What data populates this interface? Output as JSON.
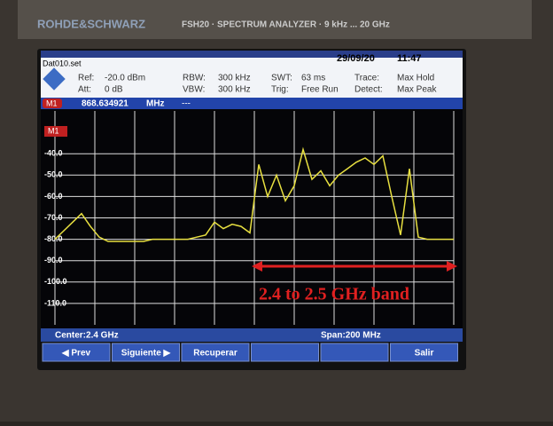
{
  "device": {
    "brand": "ROHDE&SCHWARZ",
    "model": "FSH20 · SPECTRUM ANALYZER · 9 kHz ... 20 GHz"
  },
  "screen": {
    "file": "Dat010.set",
    "date": "29/09/20",
    "time": "11:47",
    "settings": [
      {
        "label": "Ref:",
        "value": "-20.0 dBm"
      },
      {
        "label": "Att:",
        "value": "0 dB"
      },
      {
        "label": "RBW:",
        "value": "300 kHz"
      },
      {
        "label": "VBW:",
        "value": "300 kHz"
      },
      {
        "label": "SWT:",
        "value": "63 ms"
      },
      {
        "label": "Trig:",
        "value": "Free Run"
      },
      {
        "label": "Trace:",
        "value": "Max Hold"
      },
      {
        "label": "Detect:",
        "value": "Max Peak"
      }
    ],
    "marker": {
      "name": "M1",
      "frequency": "868.634921",
      "unit": "MHz",
      "level": "---"
    },
    "center": "Center:2.4 GHz",
    "span": "Span:200 MHz",
    "softkeys": [
      "◀ Prev",
      "Siguiente ▶",
      "Recuperar",
      "",
      "",
      "Salir"
    ]
  },
  "chart_data": {
    "type": "line",
    "annotation": "2.4 to 2.5 GHz band",
    "color": "#e8e040",
    "ylim": [
      -120,
      -20
    ],
    "yticks": [
      {
        "value": -40,
        "label": "-40.0"
      },
      {
        "value": -50,
        "label": "-50.0"
      },
      {
        "value": -60,
        "label": "-60.0"
      },
      {
        "value": -70,
        "label": "-70.0"
      },
      {
        "value": -80,
        "label": "-80.0"
      },
      {
        "value": -90,
        "label": "-90.0"
      },
      {
        "value": -100,
        "label": "-100.0"
      },
      {
        "value": -110,
        "label": "-110.0"
      }
    ],
    "grid": true,
    "values": [
      -80,
      -76,
      -72,
      -68,
      -74,
      -79,
      -81,
      -81,
      -81,
      -81,
      -81,
      -80,
      -80,
      -80,
      -80,
      -80,
      -79,
      -78,
      -72,
      -75,
      -73,
      -74,
      -77,
      -45,
      -60,
      -50,
      -62,
      -55,
      -38,
      -52,
      -48,
      -55,
      -50,
      -47,
      -44,
      -42,
      -45,
      -41,
      -60,
      -78,
      -47,
      -79,
      -80,
      -80,
      -80,
      -80
    ]
  }
}
